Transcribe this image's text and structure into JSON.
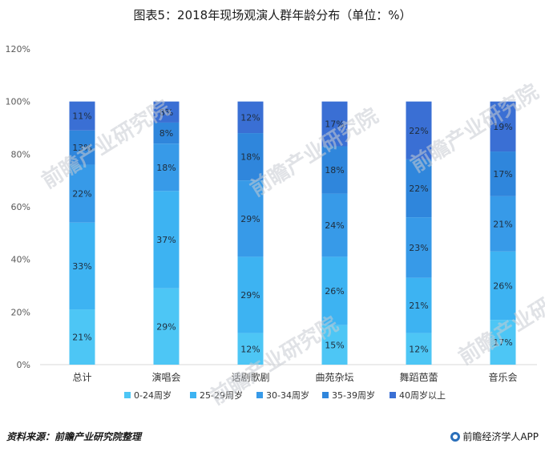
{
  "header": {
    "title": "图表5：2018年现场观演人群年龄分布（单位：%）"
  },
  "footer": {
    "source": "资料来源：前瞻产业研究院整理",
    "brand": "前瞻经济学人APP"
  },
  "watermark": {
    "text": "前瞻产业研究院"
  },
  "colors": {
    "grid": "#d9d9d9",
    "axis_text": "#595959",
    "series": [
      "#4dc6f5",
      "#3db3f2",
      "#379ae8",
      "#2f86dc",
      "#3a6fd4"
    ]
  },
  "chart_data": {
    "type": "bar",
    "stacked": true,
    "title": "图表5：2018年现场观演人群年龄分布（单位：%）",
    "categories": [
      "总计",
      "演唱会",
      "话剧歌剧",
      "曲苑杂坛",
      "舞蹈芭蕾",
      "音乐会"
    ],
    "ylim": [
      0,
      120
    ],
    "yticks": [
      "0%",
      "20%",
      "40%",
      "60%",
      "80%",
      "100%",
      "120%"
    ],
    "grid": false,
    "legend_position": "bottom",
    "series": [
      {
        "name": "0-24周岁",
        "values": [
          21,
          29,
          12,
          15,
          12,
          17
        ],
        "labels": [
          "21%",
          "29%",
          "12%",
          "15%",
          "12%",
          "17%"
        ]
      },
      {
        "name": "25-29周岁",
        "values": [
          33,
          37,
          29,
          26,
          21,
          26
        ],
        "labels": [
          "33%",
          "37%",
          "29%",
          "26%",
          "21%",
          "26%"
        ]
      },
      {
        "name": "30-34周岁",
        "values": [
          22,
          18,
          29,
          24,
          23,
          21
        ],
        "labels": [
          "22%",
          "18%",
          "29%",
          "24%",
          "23%",
          "21%"
        ]
      },
      {
        "name": "35-39周岁",
        "values": [
          13,
          8,
          18,
          18,
          22,
          17
        ],
        "labels": [
          "13%",
          "8%",
          "18%",
          "18%",
          "22%",
          "17%"
        ]
      },
      {
        "name": "40周岁以上",
        "values": [
          11,
          8,
          12,
          17,
          22,
          19
        ],
        "labels": [
          "11%",
          "8%",
          "12%",
          "17%",
          "22%",
          "19%"
        ]
      }
    ]
  }
}
